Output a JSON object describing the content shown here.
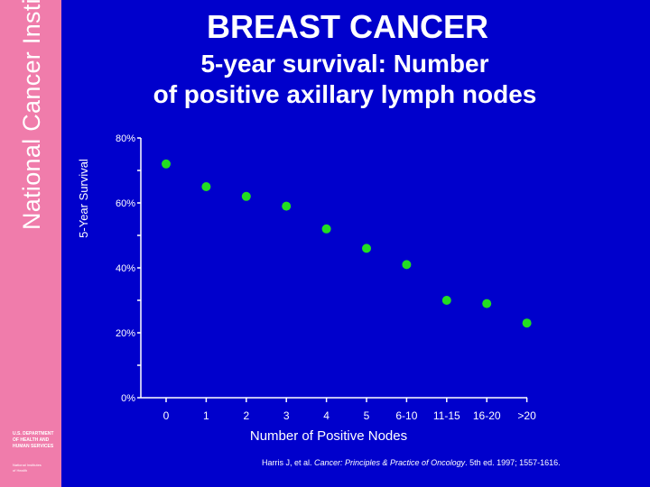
{
  "sidebar": {
    "title": "National Cancer Institute",
    "dept_lines": [
      "U.S. Department",
      "of Health and",
      "Human Services"
    ],
    "nih_lines": [
      "National Institutes",
      "of Health"
    ]
  },
  "header": {
    "title": "BREAST CANCER",
    "subtitle_line1": "5-year survival: Number",
    "subtitle_line2": "of positive axillary lymph nodes"
  },
  "citation": {
    "prefix": "Harris J, et al. ",
    "journal": "Cancer: Principles & Practice of Oncology",
    "suffix": ". 5th ed. 1997; 1557-1616."
  },
  "colors": {
    "background": "#0000cc",
    "sidebar": "#f07cab",
    "point": "#22dd22",
    "axis": "#ffffff"
  },
  "chart_data": {
    "type": "scatter",
    "title": "",
    "xlabel": "Number of Positive Nodes",
    "ylabel": "5-Year Survival",
    "categories": [
      "0",
      "1",
      "2",
      "3",
      "4",
      "5",
      "6-10",
      "11-15",
      "16-20",
      ">20"
    ],
    "values": [
      72,
      65,
      62,
      59,
      52,
      46,
      41,
      30,
      29,
      23
    ],
    "y_ticks": [
      0,
      20,
      40,
      60,
      80
    ],
    "y_tick_labels": [
      "0%",
      "20%",
      "40%",
      "60%",
      "80%"
    ],
    "ylim": [
      0,
      80
    ],
    "grid": false,
    "legend": "none"
  }
}
